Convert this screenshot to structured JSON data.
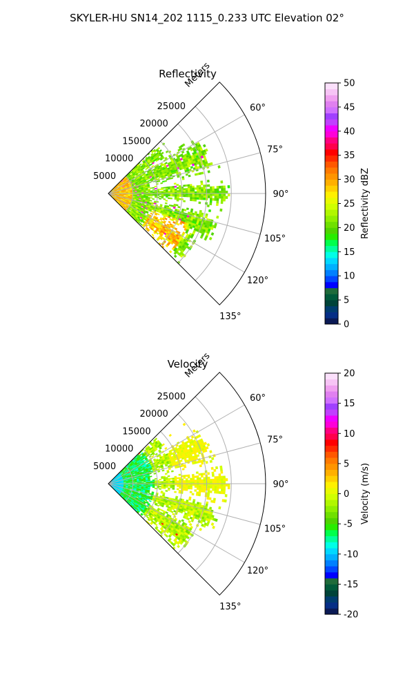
{
  "figure": {
    "title": "SKYLER-HU  SN14_202  1115_0.233 UTC Elevation 02°"
  },
  "chart_data": [
    {
      "type": "heatmap",
      "projection": "polar-sector",
      "title": "Reflectivity",
      "radial_label": "Meters",
      "radial_ticks": [
        5000,
        10000,
        15000,
        20000,
        25000
      ],
      "radial_tick_labels": [
        "5000",
        "10000",
        "15000",
        "20000",
        "25000"
      ],
      "radial_max": 32000,
      "angle_range_deg": [
        45,
        135
      ],
      "angle_ticks": [
        60,
        75,
        90,
        105,
        120,
        135
      ],
      "angle_tick_labels": [
        "60°",
        "75°",
        "90°",
        "105°",
        "120°",
        "135°"
      ],
      "grid": true,
      "colorbar": {
        "label": "Reflectivity dBZ",
        "range": [
          0,
          50
        ],
        "ticks": [
          0,
          5,
          10,
          15,
          20,
          25,
          30,
          35,
          40,
          45,
          50
        ],
        "tick_labels": [
          "0",
          "5",
          "10",
          "15",
          "20",
          "25",
          "30",
          "35",
          "40",
          "45",
          "50"
        ],
        "colors": [
          "#0b1a55",
          "#062e86",
          "#003c6e",
          "#004338",
          "#005a3a",
          "#1f6b3a",
          "#0000ff",
          "#0047ff",
          "#0080ff",
          "#00b0ff",
          "#00d8ff",
          "#00ffe6",
          "#00ff9c",
          "#00ff4c",
          "#29ec00",
          "#4fd400",
          "#6fe000",
          "#8fef00",
          "#b0f700",
          "#d0ff00",
          "#e9fa00",
          "#fff000",
          "#ffd000",
          "#ffb000",
          "#ff9500",
          "#ff7a00",
          "#ff5800",
          "#ff2a00",
          "#ff0000",
          "#ff004c",
          "#ff0080",
          "#ff00d8",
          "#f000ff",
          "#c040ff",
          "#a040ff",
          "#d070ff",
          "#e080f0",
          "#f0a0f0",
          "#f7c4f5",
          "#fbe0fb"
        ]
      }
    },
    {
      "type": "heatmap",
      "projection": "polar-sector",
      "title": "Velocity",
      "radial_label": "Meters",
      "radial_ticks": [
        5000,
        10000,
        15000,
        20000,
        25000
      ],
      "radial_tick_labels": [
        "5000",
        "10000",
        "15000",
        "20000",
        "25000"
      ],
      "radial_max": 32000,
      "angle_range_deg": [
        45,
        135
      ],
      "angle_ticks": [
        60,
        75,
        90,
        105,
        120,
        135
      ],
      "angle_tick_labels": [
        "60°",
        "75°",
        "90°",
        "105°",
        "120°",
        "135°"
      ],
      "grid": true,
      "colorbar": {
        "label": "Velocity (m/s)",
        "range": [
          -20,
          20
        ],
        "ticks": [
          -20,
          -15,
          -10,
          -5,
          0,
          5,
          10,
          15,
          20
        ],
        "tick_labels": [
          "-20",
          "-15",
          "-10",
          "-5",
          "0",
          "5",
          "10",
          "15",
          "20"
        ],
        "colors": [
          "#0b1a55",
          "#062e86",
          "#003c6e",
          "#004338",
          "#005a3a",
          "#1f6b3a",
          "#0000ff",
          "#0047ff",
          "#0080ff",
          "#00b0ff",
          "#00d8ff",
          "#00ffe6",
          "#00ff9c",
          "#00ff4c",
          "#29ec00",
          "#4fd400",
          "#6fe000",
          "#8fef00",
          "#b0f700",
          "#d0ff00",
          "#e9fa00",
          "#fff000",
          "#ffd000",
          "#ffb000",
          "#ff9500",
          "#ff7a00",
          "#ff5800",
          "#ff2a00",
          "#ff0000",
          "#ff004c",
          "#ff0080",
          "#ff00d8",
          "#f000ff",
          "#c040ff",
          "#a040ff",
          "#d070ff",
          "#e080f0",
          "#f0a0f0",
          "#f7c4f5",
          "#fbe0fb"
        ]
      }
    }
  ]
}
